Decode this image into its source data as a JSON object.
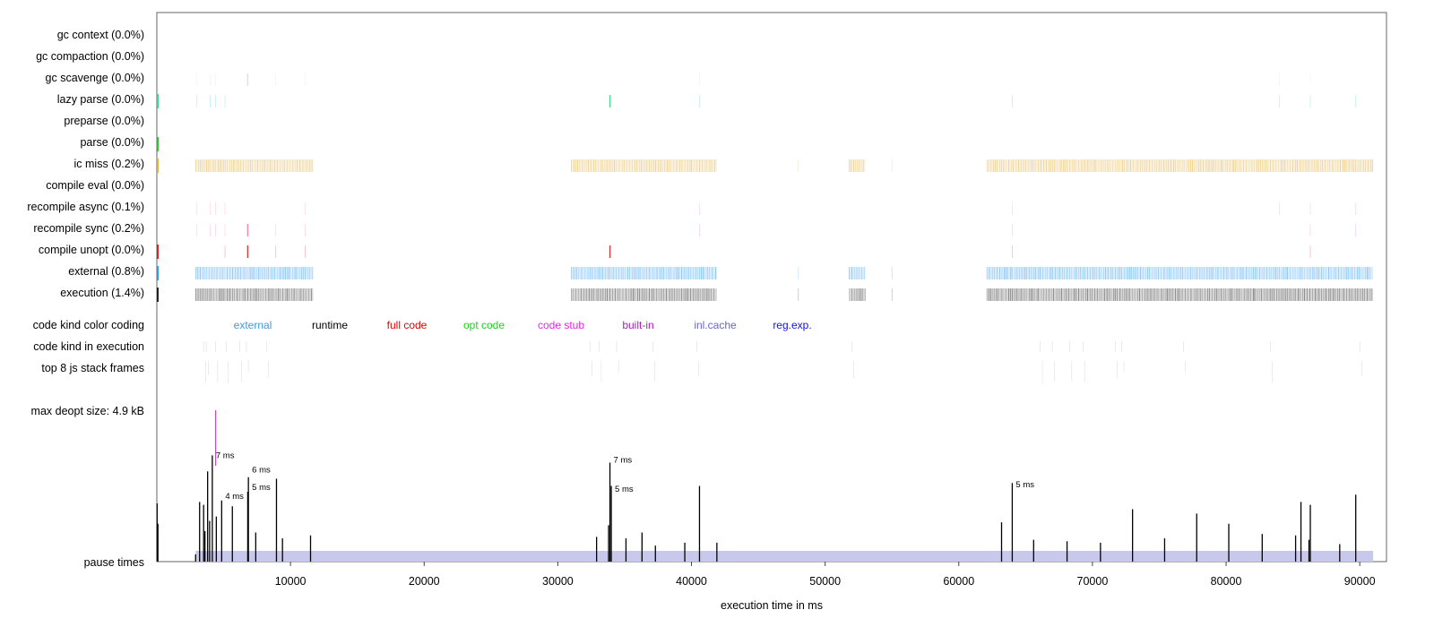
{
  "rows": [
    {
      "label": "gc context (0.0%)",
      "color": "#e0e0e0",
      "density": 0
    },
    {
      "label": "gc compaction (0.0%)",
      "color": "#e0e0e0",
      "density": 0
    },
    {
      "label": "gc scavenge (0.0%)",
      "color": "#dcdcdc",
      "density": 0.02
    },
    {
      "label": "lazy parse (0.0%)",
      "color": "#39d78f",
      "density": 0.04
    },
    {
      "label": "preparse (0.0%)",
      "color": "#9fd88c",
      "density": 0
    },
    {
      "label": "parse (0.0%)",
      "color": "#2ec42e",
      "density": 0
    },
    {
      "label": "ic miss (0.2%)",
      "color": "#e0b040",
      "density": 1
    },
    {
      "label": "compile eval (0.0%)",
      "color": "#ffb0b0",
      "density": 0
    },
    {
      "label": "recompile async (0.1%)",
      "color": "#ff88aa",
      "density": 0.04
    },
    {
      "label": "recompile sync (0.2%)",
      "color": "#ff7799",
      "density": 0.05
    },
    {
      "label": "compile unopt (0.0%)",
      "color": "#dd2222",
      "density": 0.03
    },
    {
      "label": "external (0.8%)",
      "color": "#3399ee",
      "density": 1
    },
    {
      "label": "execution (1.4%)",
      "color": "#222222",
      "density": 1
    }
  ],
  "legend": {
    "title": "code kind color coding",
    "items": [
      {
        "label": "external",
        "color": "#3a9be0"
      },
      {
        "label": "runtime",
        "color": "#000000"
      },
      {
        "label": "full code",
        "color": "#e00000"
      },
      {
        "label": "opt code",
        "color": "#22cc22"
      },
      {
        "label": "code stub",
        "color": "#ee22ee"
      },
      {
        "label": "built-in",
        "color": "#aa22bb"
      },
      {
        "label": "inl.cache",
        "color": "#6666cc"
      },
      {
        "label": "reg.exp.",
        "color": "#1111ee"
      }
    ]
  },
  "extra_rows": {
    "code_kind_in_execution": "code kind in execution",
    "top_stack_frames": "top 8 js stack frames",
    "max_deopt": "max deopt size: 4.9 kB",
    "pause_times": "pause times"
  },
  "chart_data": {
    "type": "timeline",
    "xlabel": "execution time in ms",
    "xlim": [
      0,
      92000
    ],
    "xticks": [
      10000,
      20000,
      30000,
      40000,
      50000,
      60000,
      70000,
      80000,
      90000
    ],
    "active_segments": [
      [
        2900,
        11700
      ],
      [
        31000,
        41900
      ],
      [
        51800,
        53000
      ],
      [
        62100,
        91000
      ]
    ],
    "sparse_marks": [
      48000,
      55000
    ],
    "pause_ymax_ms": 10.4,
    "pauses": [
      [
        20,
        4
      ],
      [
        80,
        2.6
      ],
      [
        2900,
        0.5
      ],
      [
        3200,
        4.1
      ],
      [
        3500,
        3.9
      ],
      [
        3600,
        2.1
      ],
      [
        3800,
        6.2
      ],
      [
        3950,
        2.8
      ],
      [
        4150,
        7.3
      ],
      [
        4450,
        3.1
      ],
      [
        4850,
        4.2
      ],
      [
        5650,
        3.8
      ],
      [
        6800,
        4.8
      ],
      [
        6850,
        5.8
      ],
      [
        7400,
        2
      ],
      [
        8950,
        5.7
      ],
      [
        9400,
        1.6
      ],
      [
        11500,
        1.8
      ],
      [
        32900,
        1.7
      ],
      [
        33800,
        2.5
      ],
      [
        33900,
        6.8
      ],
      [
        34000,
        5.2
      ],
      [
        35100,
        1.6
      ],
      [
        36300,
        2
      ],
      [
        37300,
        1.1
      ],
      [
        39500,
        1.3
      ],
      [
        40600,
        5.2
      ],
      [
        41900,
        1.3
      ],
      [
        63200,
        2.7
      ],
      [
        64000,
        5.4
      ],
      [
        65600,
        1.5
      ],
      [
        68100,
        1.4
      ],
      [
        70600,
        1.3
      ],
      [
        73000,
        3.6
      ],
      [
        75400,
        1.6
      ],
      [
        77800,
        3.3
      ],
      [
        80200,
        2.6
      ],
      [
        82700,
        1.9
      ],
      [
        85200,
        1.8
      ],
      [
        85600,
        4.1
      ],
      [
        86200,
        1.5
      ],
      [
        86300,
        3.9
      ],
      [
        88500,
        1.2
      ],
      [
        89700,
        4.6
      ]
    ],
    "pause_labels": [
      {
        "x": 4150,
        "y": 7.3,
        "text": "7 ms"
      },
      {
        "x": 6850,
        "y": 6.3,
        "text": "6 ms"
      },
      {
        "x": 4850,
        "y": 4.5,
        "text": "4 ms"
      },
      {
        "x": 6850,
        "y": 5.1,
        "text": "5 ms"
      },
      {
        "x": 33900,
        "y": 7.0,
        "text": "7 ms"
      },
      {
        "x": 34000,
        "y": 5.0,
        "text": "5 ms"
      },
      {
        "x": 64000,
        "y": 5.3,
        "text": "5 ms"
      }
    ],
    "deopt_mark": {
      "x": 4400,
      "color": "#cc44cc"
    }
  }
}
